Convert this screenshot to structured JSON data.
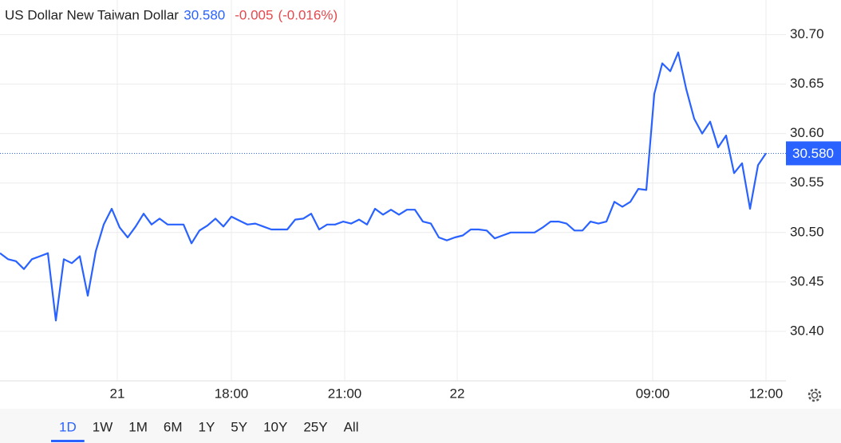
{
  "chart_data": {
    "type": "line",
    "title": "US Dollar New Taiwan Dollar",
    "change": "-0.005",
    "change_percent": "(-0.016%)",
    "reference_line": {
      "value": 30.58,
      "label": "30.580"
    },
    "color": "#2962ff",
    "x": [
      0,
      1,
      2,
      3,
      4,
      5,
      6,
      7,
      8,
      9,
      10,
      11,
      12,
      13,
      14,
      15,
      16,
      17,
      18,
      19,
      20,
      21,
      22,
      23,
      24,
      25,
      26,
      27,
      28,
      29,
      30,
      31,
      32,
      33,
      34,
      35,
      36,
      37,
      38,
      39,
      40,
      41,
      42,
      43,
      44,
      45,
      46,
      47,
      48,
      49,
      50,
      51,
      52,
      53,
      54,
      55,
      56,
      57,
      58,
      59,
      60,
      61,
      62,
      63,
      64,
      65,
      66,
      67,
      68,
      69,
      70,
      71,
      72,
      73,
      74,
      75,
      76,
      77,
      78,
      79,
      80,
      81,
      82,
      83,
      84,
      85,
      86,
      87,
      88,
      89,
      90,
      91,
      92,
      93,
      94,
      95,
      96
    ],
    "values": [
      30.479,
      30.473,
      30.471,
      30.463,
      30.473,
      30.476,
      30.479,
      30.411,
      30.473,
      30.469,
      30.476,
      30.436,
      30.481,
      30.508,
      30.524,
      30.505,
      30.495,
      30.506,
      30.519,
      30.508,
      30.514,
      30.508,
      30.508,
      30.508,
      30.489,
      30.502,
      30.507,
      30.514,
      30.506,
      30.516,
      30.512,
      30.508,
      30.509,
      30.506,
      30.503,
      30.503,
      30.503,
      30.513,
      30.514,
      30.519,
      30.503,
      30.508,
      30.508,
      30.511,
      30.509,
      30.513,
      30.508,
      30.524,
      30.518,
      30.523,
      30.518,
      30.523,
      30.523,
      30.511,
      30.509,
      30.495,
      30.492,
      30.495,
      30.497,
      30.503,
      30.503,
      30.502,
      30.494,
      30.497,
      30.5,
      30.5,
      30.5,
      30.5,
      30.505,
      30.511,
      30.511,
      30.509,
      30.502,
      30.502,
      30.511,
      30.509,
      30.511,
      30.531,
      30.526,
      30.531,
      30.544,
      30.543,
      30.64,
      30.671,
      30.663,
      30.682,
      30.645,
      30.615,
      30.6,
      30.612,
      30.586,
      30.598,
      30.56,
      30.57,
      30.524,
      30.568,
      30.58
    ],
    "xlim": [
      0,
      98.5
    ],
    "xticks": [
      {
        "value": 14.7,
        "label": "21"
      },
      {
        "value": 29,
        "label": "18:00"
      },
      {
        "value": 43.2,
        "label": "21:00"
      },
      {
        "value": 57.3,
        "label": "22"
      },
      {
        "value": 81.8,
        "label": "09:00"
      },
      {
        "value": 96,
        "label": "12:00"
      }
    ],
    "ylim": [
      30.35,
      30.735
    ],
    "yticks": [
      {
        "value": 30.4,
        "label": "30.40"
      },
      30.45,
      {
        "value": 30.5,
        "label": "30.50"
      },
      30.55,
      {
        "value": 30.6,
        "label": "30.60"
      },
      30.65,
      {
        "value": 30.7,
        "label": "30.70"
      }
    ],
    "grid": true,
    "ranges": [
      "1D",
      "1W",
      "1M",
      "6M",
      "1Y",
      "5Y",
      "10Y",
      "25Y",
      "All"
    ],
    "selected_range": "1D"
  }
}
